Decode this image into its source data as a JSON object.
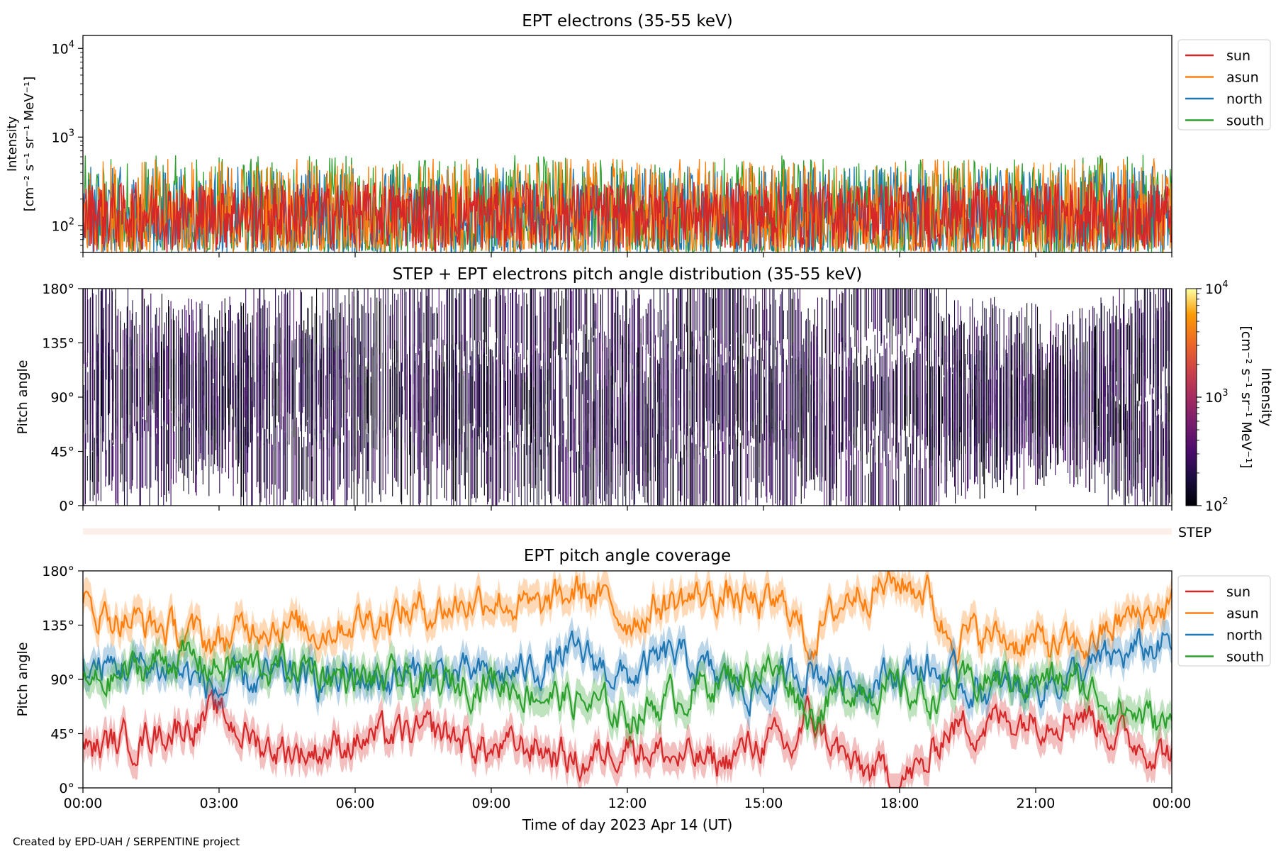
{
  "footer": "Created by EPD-UAH / SERPENTINE project",
  "colors": {
    "sun": "#d62728",
    "asun": "#ff7f0e",
    "north": "#1f77b4",
    "south": "#2ca02c",
    "step_band": "#fdf0ea"
  },
  "step_label": "STEP",
  "chart_data": [
    {
      "type": "line",
      "title": "EPT electrons (35-55 keV)",
      "ylabel_line1": "Intensity",
      "ylabel_line2": "[cm⁻² s⁻¹ sr⁻¹ MeV⁻¹]",
      "yscale": "log",
      "ylim": [
        50,
        14000
      ],
      "yticks": [
        {
          "value": 100,
          "base": "10",
          "exp": "2"
        },
        {
          "value": 1000,
          "base": "10",
          "exp": "3"
        },
        {
          "value": 10000,
          "base": "10",
          "exp": "4"
        }
      ],
      "legend_placement": "outside-right-top",
      "series": [
        {
          "name": "sun",
          "color": "#d62728",
          "typical_range": [
            50,
            300
          ]
        },
        {
          "name": "asun",
          "color": "#ff7f0e",
          "typical_range": [
            50,
            550
          ]
        },
        {
          "name": "north",
          "color": "#1f77b4",
          "typical_range": [
            50,
            450
          ]
        },
        {
          "name": "south",
          "color": "#2ca02c",
          "typical_range": [
            50,
            600
          ]
        }
      ],
      "note": "noisy time series, values mostly between 10^2 and 5x10^2"
    },
    {
      "type": "heatmap",
      "title": "STEP + EPT electrons pitch angle distribution (35-55 keV)",
      "ylabel": "Pitch angle",
      "ylim": [
        0,
        180
      ],
      "yticks": [
        "0°",
        "45°",
        "90°",
        "135°",
        "180°"
      ],
      "colorbar": {
        "label_line1": "Intensity",
        "label_line2": "[cm⁻² s⁻¹ sr⁻¹ MeV⁻¹]",
        "scale": "log",
        "range": [
          100,
          10000
        ],
        "ticks": [
          {
            "value": 100,
            "base": "10",
            "exp": "2"
          },
          {
            "value": 1000,
            "base": "10",
            "exp": "3"
          },
          {
            "value": 10000,
            "base": "10",
            "exp": "4"
          }
        ],
        "colormap": "inferno"
      }
    },
    {
      "type": "line",
      "title": "EPT pitch angle coverage",
      "ylabel": "Pitch angle",
      "xlabel": "Time of day 2023 Apr 14 (UT)",
      "ylim": [
        0,
        180
      ],
      "yticks": [
        "0°",
        "45°",
        "90°",
        "135°",
        "180°"
      ],
      "legend_placement": "outside-right-top",
      "series": [
        {
          "name": "sun",
          "color": "#d62728",
          "keypoints": [
            [
              0,
              30
            ],
            [
              2,
              50
            ],
            [
              3,
              60
            ],
            [
              4,
              35
            ],
            [
              5,
              30
            ],
            [
              6,
              40
            ],
            [
              8,
              45
            ],
            [
              9,
              30
            ],
            [
              10,
              35
            ],
            [
              11,
              20
            ],
            [
              12,
              40
            ],
            [
              13,
              25
            ],
            [
              14,
              20
            ],
            [
              15,
              40
            ],
            [
              15.6,
              30
            ],
            [
              16,
              60
            ],
            [
              17,
              15
            ],
            [
              18,
              10
            ],
            [
              18.6,
              15
            ],
            [
              19,
              50
            ],
            [
              20,
              55
            ],
            [
              21,
              60
            ],
            [
              22,
              65
            ],
            [
              23,
              40
            ],
            [
              24,
              30
            ]
          ]
        },
        {
          "name": "asun",
          "color": "#ff7f0e",
          "keypoints": [
            [
              0,
              150
            ],
            [
              2,
              130
            ],
            [
              3,
              120
            ],
            [
              4,
              140
            ],
            [
              5,
              130
            ],
            [
              6,
              140
            ],
            [
              8,
              150
            ],
            [
              9,
              160
            ],
            [
              10,
              145
            ],
            [
              11,
              165
            ],
            [
              12,
              140
            ],
            [
              13,
              155
            ],
            [
              14,
              160
            ],
            [
              15,
              150
            ],
            [
              15.6,
              150
            ],
            [
              16,
              120
            ],
            [
              17,
              165
            ],
            [
              18,
              170
            ],
            [
              18.6,
              165
            ],
            [
              19,
              130
            ],
            [
              20,
              125
            ],
            [
              21,
              120
            ],
            [
              22,
              115
            ],
            [
              23,
              140
            ],
            [
              24,
              150
            ]
          ]
        },
        {
          "name": "north",
          "color": "#1f77b4",
          "keypoints": [
            [
              0,
              100
            ],
            [
              2,
              100
            ],
            [
              3,
              80
            ],
            [
              4,
              90
            ],
            [
              5,
              90
            ],
            [
              6,
              90
            ],
            [
              8,
              95
            ],
            [
              9,
              90
            ],
            [
              10,
              100
            ],
            [
              11,
              110
            ],
            [
              12,
              90
            ],
            [
              13,
              110
            ],
            [
              14,
              90
            ],
            [
              15,
              80
            ],
            [
              15.6,
              90
            ],
            [
              16,
              100
            ],
            [
              17,
              90
            ],
            [
              18,
              95
            ],
            [
              18.6,
              100
            ],
            [
              19,
              90
            ],
            [
              20,
              80
            ],
            [
              21,
              85
            ],
            [
              22,
              95
            ],
            [
              23,
              110
            ],
            [
              24,
              120
            ]
          ]
        },
        {
          "name": "south",
          "color": "#2ca02c",
          "keypoints": [
            [
              0,
              80
            ],
            [
              2,
              110
            ],
            [
              3,
              100
            ],
            [
              4,
              100
            ],
            [
              5,
              100
            ],
            [
              6,
              90
            ],
            [
              8,
              85
            ],
            [
              9,
              90
            ],
            [
              10,
              80
            ],
            [
              11,
              70
            ],
            [
              12,
              60
            ],
            [
              13,
              75
            ],
            [
              14,
              90
            ],
            [
              15,
              100
            ],
            [
              15.6,
              90
            ],
            [
              16,
              60
            ],
            [
              17,
              85
            ],
            [
              18,
              80
            ],
            [
              18.6,
              75
            ],
            [
              19,
              80
            ],
            [
              20,
              90
            ],
            [
              21,
              90
            ],
            [
              22,
              85
            ],
            [
              23,
              65
            ],
            [
              24,
              50
            ]
          ]
        }
      ]
    }
  ],
  "x_axis": {
    "range_hours": [
      0,
      24
    ],
    "tick_labels": [
      "00:00",
      "03:00",
      "06:00",
      "09:00",
      "12:00",
      "15:00",
      "18:00",
      "21:00",
      "00:00"
    ],
    "label": "Time of day 2023 Apr 14 (UT)"
  }
}
